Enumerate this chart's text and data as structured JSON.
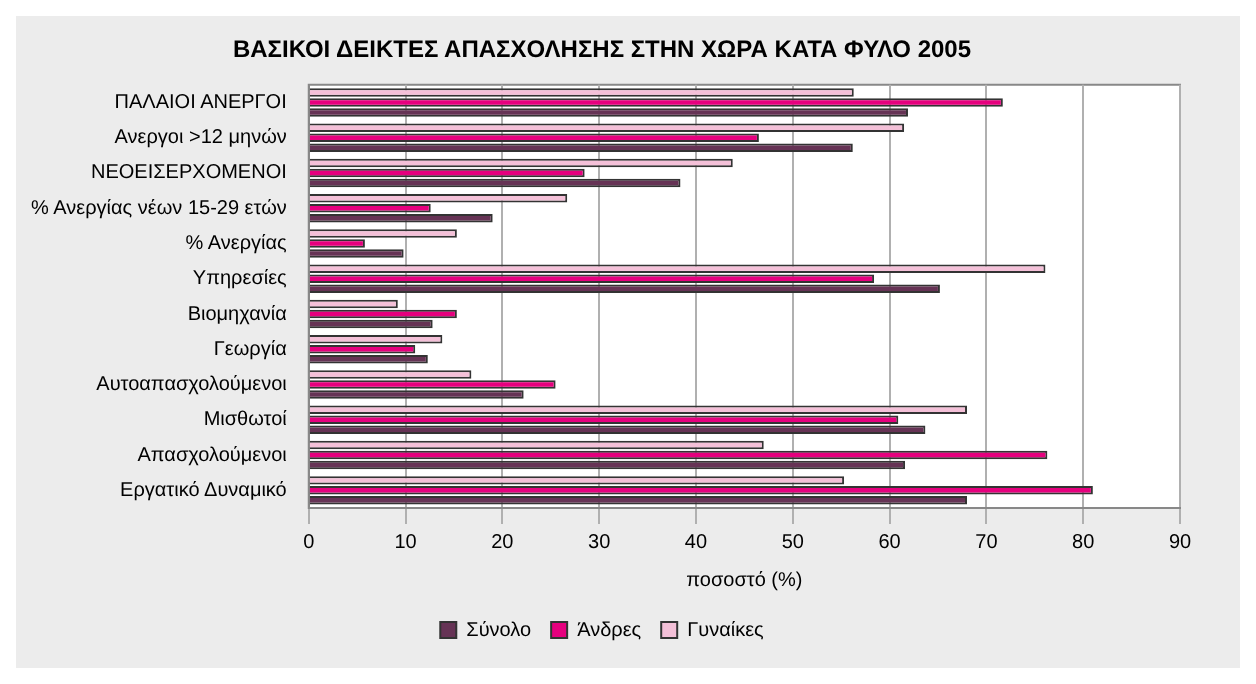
{
  "chart_data": {
    "type": "bar",
    "orientation": "horizontal",
    "title": "ΒΑΣΙΚΟΙ ΔΕΙΚΤΕΣ ΑΠΑΣΧΟΛΗΣΗΣ ΣΤΗΝ ΧΩΡΑ ΚΑΤΑ ΦΥΛΟ 2005",
    "xlabel": "ποσοστό (%)",
    "categories": [
      "ΠΑΛΑΙΟΙ ΑΝΕΡΓΟΙ",
      "Ανεργοι >12 μηνών",
      "ΝΕΟΕΙΣΕΡΧΟΜΕΝΟΙ",
      "% Ανεργίας νέων 15-29 ετών",
      "% Ανεργίας",
      "Υπηρεσίες",
      "Βιομηχανία",
      "Γεωργία",
      "Αυτοαπασχολούμενοι",
      "Μισθωτοί",
      "Απασχολούμενοι",
      "Εργατικό Δυναμικό"
    ],
    "series": [
      {
        "name": "Σύνολο",
        "color": "#663355",
        "values": [
          61.9,
          56.2,
          38.4,
          19.0,
          9.8,
          65.2,
          12.8,
          12.3,
          22.2,
          63.7,
          61.6,
          68.0
        ]
      },
      {
        "name": "Άνδρες",
        "color": "#e6007e",
        "values": [
          71.7,
          46.5,
          28.5,
          12.6,
          5.8,
          58.4,
          15.3,
          11.0,
          25.5,
          60.9,
          76.3,
          81.0
        ]
      },
      {
        "name": "Γυναίκες",
        "color": "#f4c0d8",
        "values": [
          56.3,
          61.5,
          43.8,
          26.7,
          15.3,
          76.1,
          9.2,
          13.8,
          16.8,
          68.0,
          47.0,
          55.3
        ]
      }
    ],
    "xlim": [
      0,
      90
    ],
    "xticks": [
      0,
      10,
      20,
      30,
      40,
      50,
      60,
      70,
      80,
      90
    ],
    "grid": "x",
    "legend": "bottom"
  }
}
